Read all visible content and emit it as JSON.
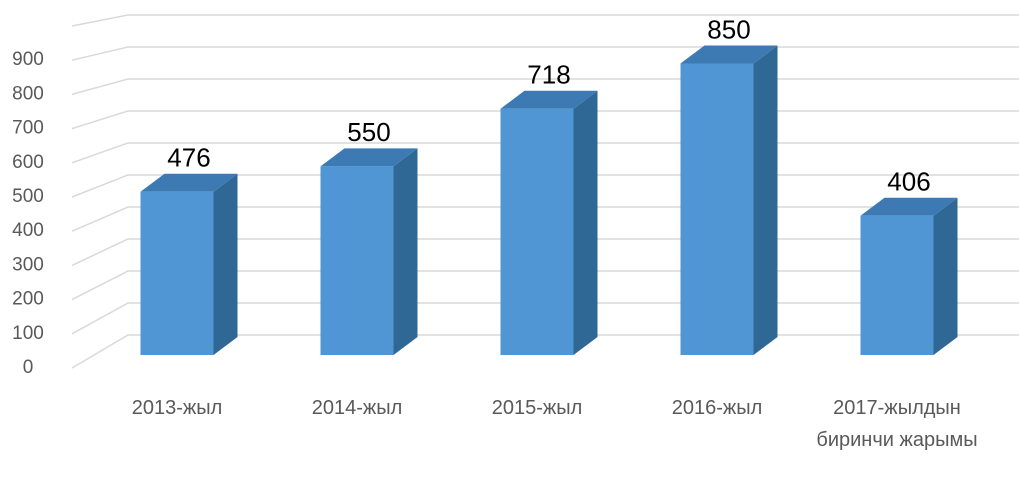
{
  "chart_data": {
    "type": "bar3d",
    "categories": [
      "2013-жыл",
      "2014-жыл",
      "2015-жыл",
      "2016-жыл",
      "2017-жылдын биринчи жарымы"
    ],
    "values": [
      476,
      550,
      718,
      850,
      406
    ],
    "color": "#5096d4",
    "ylim": [
      0,
      1000
    ],
    "yticks": [
      0,
      100,
      200,
      300,
      400,
      500,
      600,
      700,
      800,
      900
    ],
    "grid": true
  }
}
